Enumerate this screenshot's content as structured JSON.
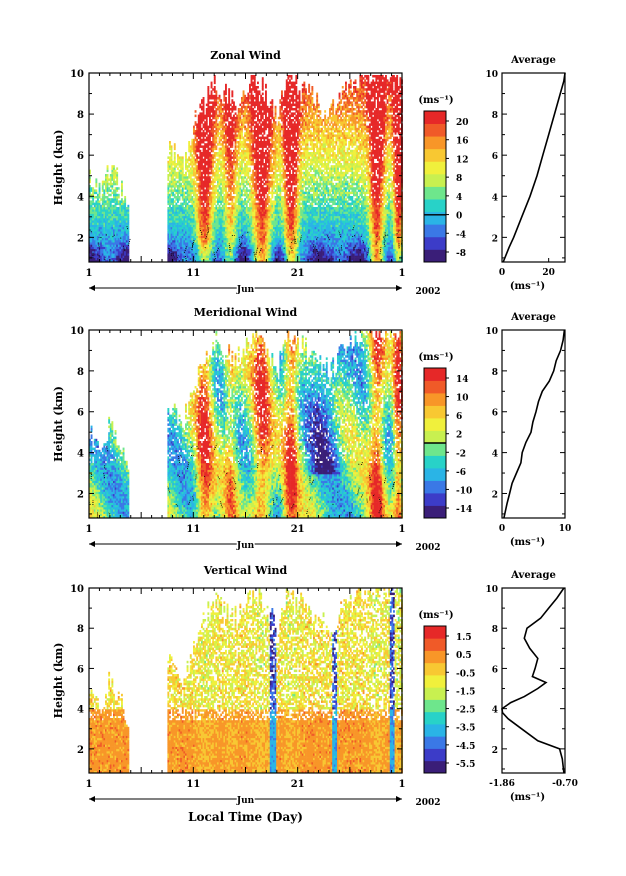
{
  "chart_data": [
    {
      "type": "heatmap",
      "title": "Zonal Wind",
      "ylabel": "Height (km)",
      "xlabel": "Jun",
      "x_ticks": [
        "1",
        "11",
        "21",
        "1"
      ],
      "x_range_days": [
        1,
        31
      ],
      "year_label": "2002",
      "ylim": [
        0.8,
        10
      ],
      "y_ticks": [
        "2",
        "4",
        "6",
        "8",
        "10"
      ],
      "colorbar": {
        "unit": "(ms⁻¹)",
        "labels": [
          "20",
          "16",
          "12",
          "8",
          "4",
          "0",
          "-4",
          "-8"
        ],
        "range": [
          -10,
          22
        ],
        "zero_line": 0,
        "colors": [
          "#3a1e78",
          "#3c3cc8",
          "#3a78e6",
          "#2ab4e6",
          "#28d2c8",
          "#6ee68c",
          "#c8f050",
          "#f0f03c",
          "#f8c832",
          "#f89628",
          "#f05a28",
          "#e62828"
        ]
      },
      "mean_profile": {
        "title": "Average",
        "xlabel": "(ms⁻¹)",
        "x_ticks": [
          "0",
          "20"
        ],
        "xlim": [
          0,
          27
        ],
        "heights": [
          0.8,
          1.5,
          2.0,
          3.0,
          4.0,
          5.0,
          6.0,
          7.0,
          8.0,
          9.0,
          9.6,
          10.0
        ],
        "values": [
          0.5,
          3,
          5,
          8.5,
          12,
          15,
          17.5,
          20,
          22.5,
          25,
          26.5,
          27
        ]
      }
    },
    {
      "type": "heatmap",
      "title": "Meridional Wind",
      "ylabel": "Height (km)",
      "xlabel": "Jun",
      "x_ticks": [
        "1",
        "11",
        "21",
        "1"
      ],
      "x_range_days": [
        1,
        31
      ],
      "year_label": "2002",
      "ylim": [
        0.8,
        10
      ],
      "y_ticks": [
        "2",
        "4",
        "6",
        "8",
        "10"
      ],
      "colorbar": {
        "unit": "(ms⁻¹)",
        "labels": [
          "14",
          "10",
          "6",
          "2",
          "-2",
          "-6",
          "-10",
          "-14"
        ],
        "range": [
          -16,
          16
        ],
        "zero_line": 0,
        "colors": [
          "#3a1e78",
          "#3c3cc8",
          "#3a78e6",
          "#2ab4e6",
          "#28d2c8",
          "#6ee68c",
          "#c8f050",
          "#f0f03c",
          "#f8c832",
          "#f89628",
          "#f05a28",
          "#e62828"
        ]
      },
      "mean_profile": {
        "title": "Average",
        "xlabel": "(ms⁻¹)",
        "x_ticks": [
          "0",
          "10"
        ],
        "xlim": [
          0,
          10
        ],
        "heights": [
          0.8,
          1.5,
          2.0,
          2.5,
          3.0,
          3.5,
          4.0,
          4.5,
          5.0,
          5.5,
          6.0,
          6.5,
          7.0,
          7.5,
          8.0,
          8.5,
          9.0,
          9.5,
          10.0
        ],
        "values": [
          0.3,
          0.8,
          1.2,
          1.6,
          2.3,
          3.0,
          3.2,
          3.8,
          4.6,
          4.9,
          5.4,
          5.8,
          6.4,
          7.5,
          8.2,
          8.6,
          9.3,
          9.7,
          9.9
        ]
      }
    },
    {
      "type": "heatmap",
      "title": "Vertical Wind",
      "ylabel": "Height (km)",
      "xlabel": "Jun",
      "x_ticks": [
        "1",
        "11",
        "21",
        "1"
      ],
      "x_range_days": [
        1,
        31
      ],
      "year_label": "2002",
      "common_xlabel": "Local Time (Day)",
      "ylim": [
        0.8,
        10
      ],
      "y_ticks": [
        "2",
        "4",
        "6",
        "8",
        "10"
      ],
      "colorbar": {
        "unit": "(ms⁻¹)",
        "labels": [
          "1.5",
          "0.5",
          "-0.5",
          "-1.5",
          "-2.5",
          "-3.5",
          "-4.5",
          "-5.5"
        ],
        "range": [
          -6,
          2
        ],
        "colors": [
          "#3a1e78",
          "#3c3cc8",
          "#3a78e6",
          "#2ab4e6",
          "#28d2c8",
          "#6ee68c",
          "#c8f050",
          "#f0f03c",
          "#f8c832",
          "#f89628",
          "#f05a28",
          "#e62828"
        ]
      },
      "mean_profile": {
        "title": "Average",
        "xlabel": "(ms⁻¹)",
        "x_ticks": [
          "-1.86",
          "-0.70"
        ],
        "xlim": [
          -1.86,
          -0.7
        ],
        "heights": [
          0.8,
          1.5,
          2.0,
          2.4,
          3.0,
          3.5,
          3.8,
          4.0,
          4.3,
          4.6,
          5.0,
          5.3,
          5.6,
          6.0,
          6.5,
          7.0,
          7.5,
          8.0,
          8.5,
          9.0,
          9.5,
          10.0
        ],
        "values": [
          -0.72,
          -0.75,
          -0.8,
          -1.2,
          -1.5,
          -1.75,
          -1.85,
          -1.86,
          -1.7,
          -1.45,
          -1.2,
          -1.05,
          -1.3,
          -1.25,
          -1.2,
          -1.35,
          -1.45,
          -1.4,
          -1.15,
          -1.0,
          -0.85,
          -0.72
        ]
      }
    }
  ]
}
